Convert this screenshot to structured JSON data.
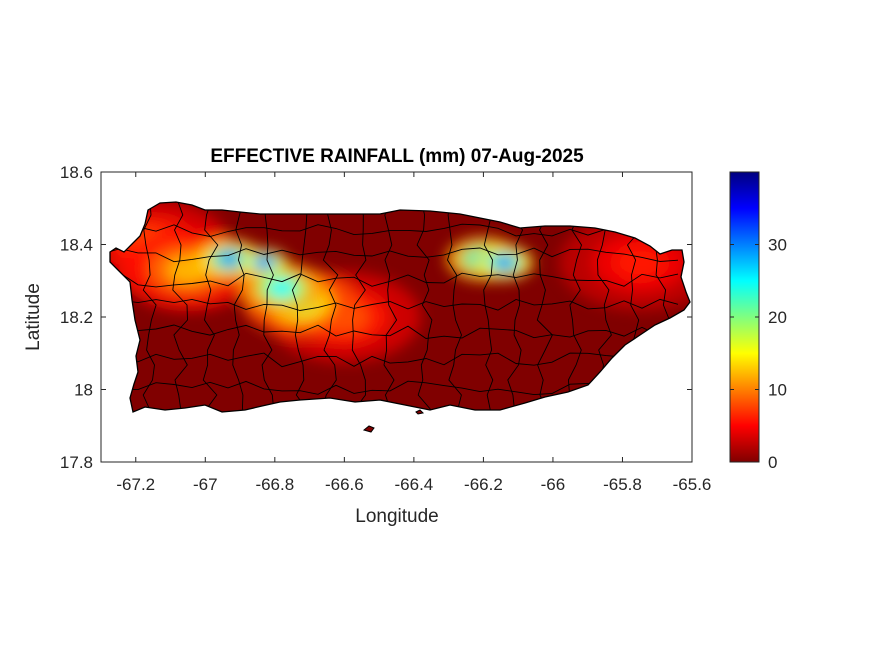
{
  "chart_data": {
    "type": "heatmap",
    "title": "EFFECTIVE RAINFALL (mm) 07-Aug-2025",
    "xlabel": "Longitude",
    "ylabel": "Latitude",
    "xlim": [
      -67.3,
      -65.6
    ],
    "ylim": [
      17.8,
      18.6
    ],
    "x_ticks": [
      -67.2,
      -67,
      -66.8,
      -66.6,
      -66.4,
      -66.2,
      -66,
      -65.8,
      -65.6
    ],
    "x_tick_labels": [
      "-67.2",
      "-67",
      "-66.8",
      "-66.6",
      "-66.4",
      "-66.2",
      "-66",
      "-65.8",
      "-65.6"
    ],
    "y_ticks": [
      17.8,
      18,
      18.2,
      18.4,
      18.6
    ],
    "y_tick_labels": [
      "17.8",
      "18",
      "18.2",
      "18.4",
      "18.6"
    ],
    "colorbar": {
      "colormap": "jet",
      "range": [
        0,
        40
      ],
      "ticks": [
        0,
        10,
        20,
        30
      ],
      "tick_labels": [
        "0",
        "10",
        "20",
        "30"
      ]
    },
    "grid": false,
    "rainfall_regions": [
      {
        "lon": -66.93,
        "lat": 18.36,
        "value_mm": 30
      },
      {
        "lon": -66.83,
        "lat": 18.35,
        "value_mm": 35
      },
      {
        "lon": -66.78,
        "lat": 18.28,
        "value_mm": 25
      },
      {
        "lon": -66.73,
        "lat": 18.24,
        "value_mm": 18
      },
      {
        "lon": -67.05,
        "lat": 18.33,
        "value_mm": 12
      },
      {
        "lon": -67.15,
        "lat": 18.4,
        "value_mm": 8
      },
      {
        "lon": -66.6,
        "lat": 18.2,
        "value_mm": 8
      },
      {
        "lon": -66.2,
        "lat": 18.36,
        "value_mm": 28
      },
      {
        "lon": -66.14,
        "lat": 18.35,
        "value_mm": 32
      },
      {
        "lon": -65.75,
        "lat": 18.35,
        "value_mm": 6
      }
    ],
    "background_value_mm": 1
  }
}
